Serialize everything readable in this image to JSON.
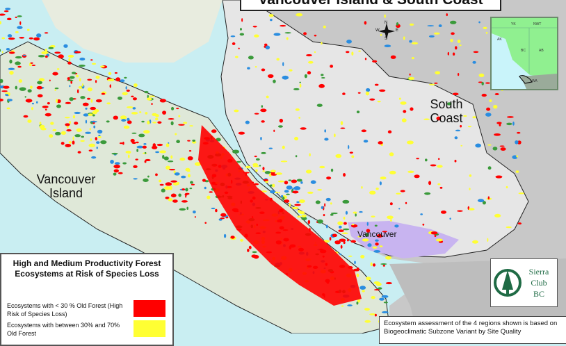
{
  "title": "Vancouver Island & South Coast",
  "regions": {
    "vancouver_island": "Vancouver Island",
    "south_coast": "South Coast"
  },
  "cities": {
    "vancouver": "Vancouver"
  },
  "compass": {
    "n": "N",
    "s": "S",
    "e": "E",
    "w": "W"
  },
  "inset": {
    "labels": [
      "YK",
      "NWT",
      "AK",
      "BC",
      "AB",
      "WA"
    ]
  },
  "logo": {
    "line1": "Sierra",
    "line2": "Club",
    "line3": "BC"
  },
  "legend": {
    "title": "High and Medium Productivity Forest Ecosystems at Risk of Species Loss",
    "items": [
      {
        "label": "Ecosystems with < 30 % Old Forest (High Risk of Species Loss)",
        "color": "#ff0000"
      },
      {
        "label": "Ecosystems with between 30% and 70% Old Forest",
        "color": "#ffff33"
      }
    ]
  },
  "note": "Ecosystem assessment of the 4 regions shown is based on Biogeoclimatic Subzone Variant by Site Quality",
  "colors": {
    "sea": "#c9eef2",
    "land": "#c8c8c8",
    "high_risk": "#ff0000",
    "moderate_risk": "#ffff33",
    "low_risk": "#3a9a3a",
    "water": "#2a8de0",
    "urban": "#c8b4f0"
  }
}
